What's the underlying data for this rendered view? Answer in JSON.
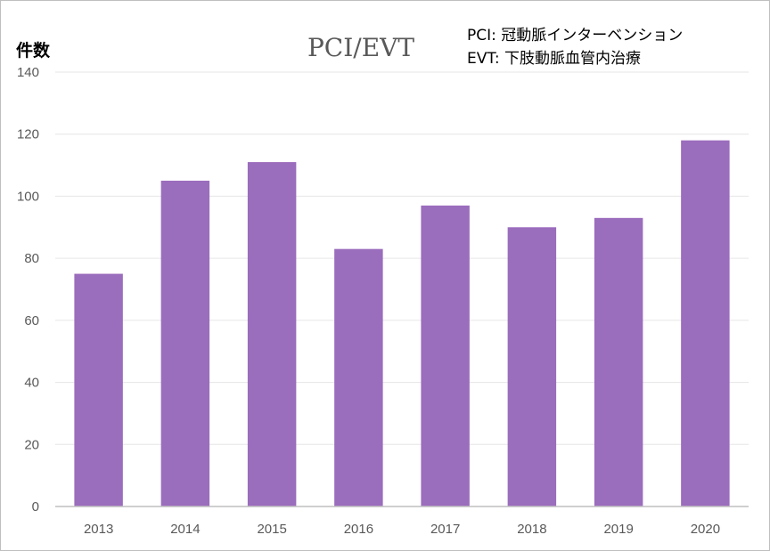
{
  "chart_data": {
    "type": "bar",
    "title": "PCI/EVT",
    "ylabel": "件数",
    "xlabel": "",
    "categories": [
      "2013",
      "2014",
      "2015",
      "2016",
      "2017",
      "2018",
      "2019",
      "2020"
    ],
    "values": [
      75,
      105,
      111,
      83,
      97,
      90,
      93,
      118
    ],
    "ylim": [
      0,
      140
    ],
    "yticks": [
      0,
      20,
      40,
      60,
      80,
      100,
      120,
      140
    ],
    "grid": true,
    "bar_color": "#9b6dbd",
    "annotations": [
      "PCI: 冠動脈インターベンション",
      "EVT: 下肢動脈血管内治療"
    ]
  }
}
